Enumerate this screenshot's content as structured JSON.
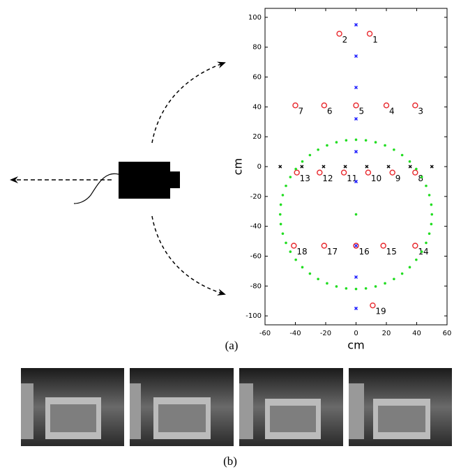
{
  "chart_data": {
    "type": "scatter",
    "xlabel": "cm",
    "ylabel": "cm",
    "xlim": [
      -60,
      60
    ],
    "ylim": [
      -106,
      106
    ],
    "xticks": [
      -60,
      -40,
      -20,
      0,
      20,
      40,
      60
    ],
    "yticks": [
      -100,
      -80,
      -60,
      -40,
      -20,
      0,
      20,
      40,
      60,
      80,
      100
    ],
    "series": [
      {
        "marker": "o",
        "color": "#e8262b",
        "x": [
          9,
          -11,
          39,
          20,
          0,
          -21,
          -40,
          39,
          24,
          8,
          -8,
          -24,
          -39,
          39,
          18,
          0,
          -21,
          -41,
          11
        ],
        "y": [
          89,
          89,
          41,
          41,
          41,
          41,
          41,
          -4,
          -4,
          -4,
          -4,
          -4,
          -4,
          -53,
          -53,
          -53,
          -53,
          -53,
          -93
        ],
        "labels": [
          "1",
          "2",
          "3",
          "4",
          "5",
          "6",
          "7",
          "8",
          "9",
          "10",
          "11",
          "12",
          "13",
          "14",
          "15",
          "16",
          "17",
          "18",
          "19"
        ]
      },
      {
        "marker": "x",
        "color": "#1a1aff",
        "x": [
          0,
          0,
          0,
          0,
          0,
          0,
          0,
          0,
          0
        ],
        "y": [
          95,
          74,
          53,
          32,
          10,
          -10,
          -53,
          -74,
          -95
        ]
      },
      {
        "marker": "x",
        "color": "#000000",
        "x": [
          -50,
          -35.7,
          -21.4,
          -7.1,
          7.1,
          21.4,
          35.7,
          50
        ],
        "y": [
          0,
          0,
          0,
          0,
          0,
          0,
          0,
          0
        ]
      },
      {
        "marker": "dot",
        "color": "#22dd22",
        "x": [
          50,
          49.6,
          48.3,
          46.2,
          43.3,
          39.7,
          35.4,
          30.4,
          25,
          19.1,
          12.9,
          6.5,
          0,
          -6.5,
          -12.9,
          -19.1,
          -25,
          -30.4,
          -35.4,
          -39.7,
          -43.3,
          -46.2,
          -48.3,
          -49.6,
          -50,
          -49.6,
          -48.3,
          -46.2,
          -43.3,
          -39.7,
          -35.4,
          -30.4,
          -25,
          -19.1,
          -12.9,
          -6.5,
          0,
          6.5,
          12.9,
          19.1,
          25,
          30.4,
          35.4,
          39.7,
          43.3,
          46.2,
          48.3,
          49.6,
          0
        ],
        "y": [
          -32,
          -25.5,
          -19.1,
          -12.9,
          -7,
          -1.6,
          3.4,
          7.7,
          11.3,
          14.2,
          16.3,
          17.6,
          18,
          17.6,
          16.3,
          14.2,
          11.3,
          7.7,
          3.4,
          -1.6,
          -7,
          -12.9,
          -19.1,
          -25.5,
          -32,
          -38.5,
          -44.9,
          -51.1,
          -57,
          -62.4,
          -67.4,
          -71.7,
          -75.3,
          -78.2,
          -80.3,
          -81.6,
          -82,
          -81.6,
          -80.3,
          -78.2,
          -75.3,
          -71.7,
          -67.4,
          -62.4,
          -57,
          -51.1,
          -44.9,
          -38.5,
          -32
        ]
      }
    ]
  },
  "captions": {
    "a": "(a)",
    "b": "(b)"
  }
}
